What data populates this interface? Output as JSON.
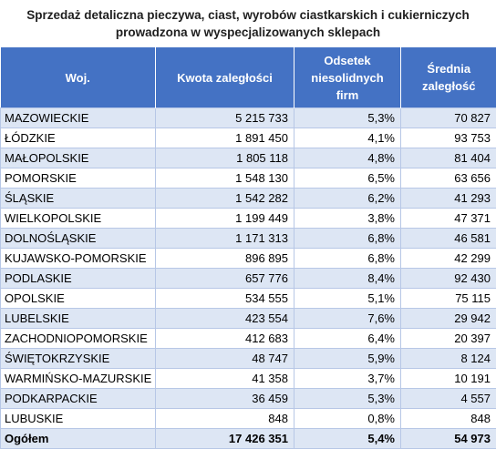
{
  "title": {
    "line1": "Sprzedaż detaliczna pieczywa, ciast, wyrobów ciastkarskich i cukierniczych",
    "line2": "prowadzona w wyspecjalizowanych sklepach"
  },
  "headers": {
    "woj": "Woj.",
    "kwota": "Kwota zaległości",
    "odsetek": [
      "Odsetek",
      "niesolidnych",
      "firm"
    ],
    "srednia": [
      "Średnia",
      "zaległość"
    ]
  },
  "rows": [
    {
      "woj": "MAZOWIECKIE",
      "kwota": "5 215 733",
      "odsetek": "5,3%",
      "srednia": "70 827"
    },
    {
      "woj": "ŁÓDZKIE",
      "kwota": "1 891 450",
      "odsetek": "4,1%",
      "srednia": "93 753"
    },
    {
      "woj": "MAŁOPOLSKIE",
      "kwota": "1 805 118",
      "odsetek": "4,8%",
      "srednia": "81 404"
    },
    {
      "woj": "POMORSKIE",
      "kwota": "1 548 130",
      "odsetek": "6,5%",
      "srednia": "63 656"
    },
    {
      "woj": "ŚLĄSKIE",
      "kwota": "1 542 282",
      "odsetek": "6,2%",
      "srednia": "41 293"
    },
    {
      "woj": "WIELKOPOLSKIE",
      "kwota": "1 199 449",
      "odsetek": "3,8%",
      "srednia": "47 371"
    },
    {
      "woj": "DOLNOŚLĄSKIE",
      "kwota": "1 171 313",
      "odsetek": "6,8%",
      "srednia": "46 581"
    },
    {
      "woj": "KUJAWSKO-POMORSKIE",
      "kwota": "896 895",
      "odsetek": "6,8%",
      "srednia": "42 299"
    },
    {
      "woj": "PODLASKIE",
      "kwota": "657 776",
      "odsetek": "8,4%",
      "srednia": "92 430"
    },
    {
      "woj": "OPOLSKIE",
      "kwota": "534 555",
      "odsetek": "5,1%",
      "srednia": "75 115"
    },
    {
      "woj": "LUBELSKIE",
      "kwota": "423 554",
      "odsetek": "7,6%",
      "srednia": "29 942"
    },
    {
      "woj": "ZACHODNIOPOMORSKIE",
      "kwota": "412 683",
      "odsetek": "6,4%",
      "srednia": "20 397"
    },
    {
      "woj": "ŚWIĘTOKRZYSKIE",
      "kwota": "48 747",
      "odsetek": "5,9%",
      "srednia": "8 124"
    },
    {
      "woj": "WARMIŃSKO-MAZURSKIE",
      "kwota": "41 358",
      "odsetek": "3,7%",
      "srednia": "10 191"
    },
    {
      "woj": "PODKARPACKIE",
      "kwota": "36 459",
      "odsetek": "5,3%",
      "srednia": "4 557"
    },
    {
      "woj": "LUBUSKIE",
      "kwota": "848",
      "odsetek": "0,8%",
      "srednia": "848"
    }
  ],
  "total": {
    "woj": "Ogółem",
    "kwota": "17 426 351",
    "odsetek": "5,4%",
    "srednia": "54 973"
  },
  "colors": {
    "header_bg": "#4472c4",
    "band": "#dde6f4",
    "border": "#b7c7e6"
  }
}
